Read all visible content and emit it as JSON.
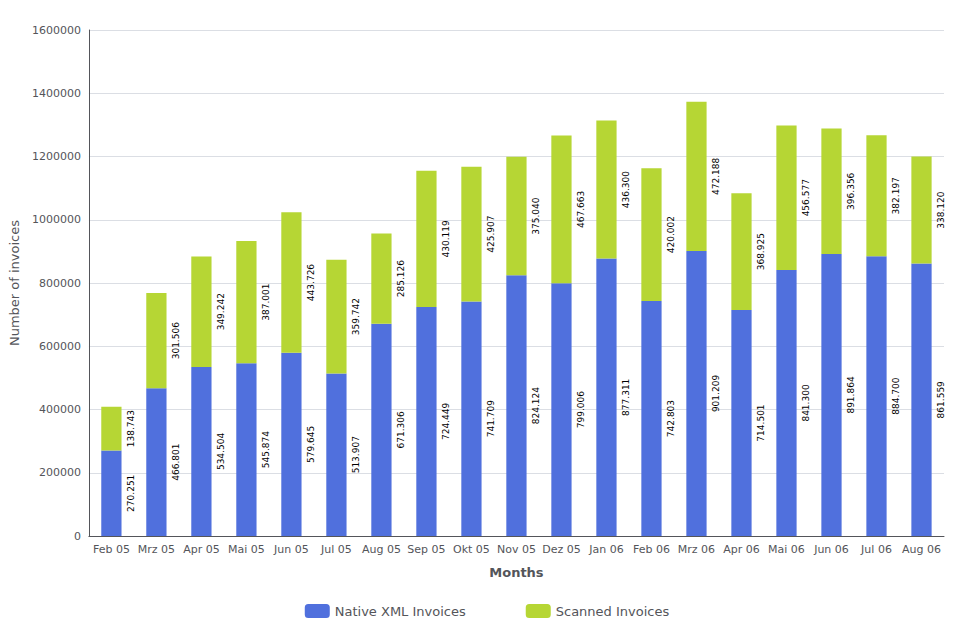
{
  "chart_data": {
    "type": "bar",
    "stacked": true,
    "categories": [
      "Feb 05",
      "Mrz 05",
      "Apr 05",
      "Mai 05",
      "Jun 05",
      "Jul 05",
      "Aug 05",
      "Sep 05",
      "Okt 05",
      "Nov 05",
      "Dez 05",
      "Jan 06",
      "Feb 06",
      "Mrz 06",
      "Apr 06",
      "Mai 06",
      "Jun 06",
      "Jul 06",
      "Aug 06"
    ],
    "series": [
      {
        "name": "Native XML Invoices",
        "values": [
          270251,
          466801,
          534504,
          545874,
          579645,
          513907,
          671306,
          724449,
          741709,
          824124,
          799006,
          877311,
          742803,
          901209,
          714501,
          841300,
          891864,
          884700,
          861559
        ],
        "value_labels": [
          "270.251",
          "466.801",
          "534.504",
          "545.874",
          "579.645",
          "513.907",
          "671.306",
          "724.449",
          "741.709",
          "824.124",
          "799.006",
          "877.311",
          "742.803",
          "901.209",
          "714.501",
          "841.300",
          "891.864",
          "884.700",
          "861.559"
        ]
      },
      {
        "name": "Scanned Invoices",
        "values": [
          138743,
          301506,
          349242,
          387001,
          443726,
          359742,
          285126,
          430119,
          425907,
          375040,
          467663,
          436300,
          420002,
          472188,
          368925,
          456577,
          396356,
          382197,
          338120
        ],
        "value_labels": [
          "138.743",
          "301.506",
          "349.242",
          "387.001",
          "443.726",
          "359.742",
          "285.126",
          "430.119",
          "425.907",
          "375.040",
          "467.663",
          "436.300",
          "420.002",
          "472.188",
          "368.925",
          "456.577",
          "396.356",
          "382.197",
          "338.120"
        ]
      }
    ],
    "xlabel": "Months",
    "ylabel": "Number of invoices",
    "ylim": [
      0,
      1600000
    ],
    "yticks": [
      0,
      200000,
      400000,
      600000,
      800000,
      1000000,
      1200000,
      1400000,
      1600000
    ],
    "grid": true,
    "legend": "bottom",
    "data_labels": true
  }
}
